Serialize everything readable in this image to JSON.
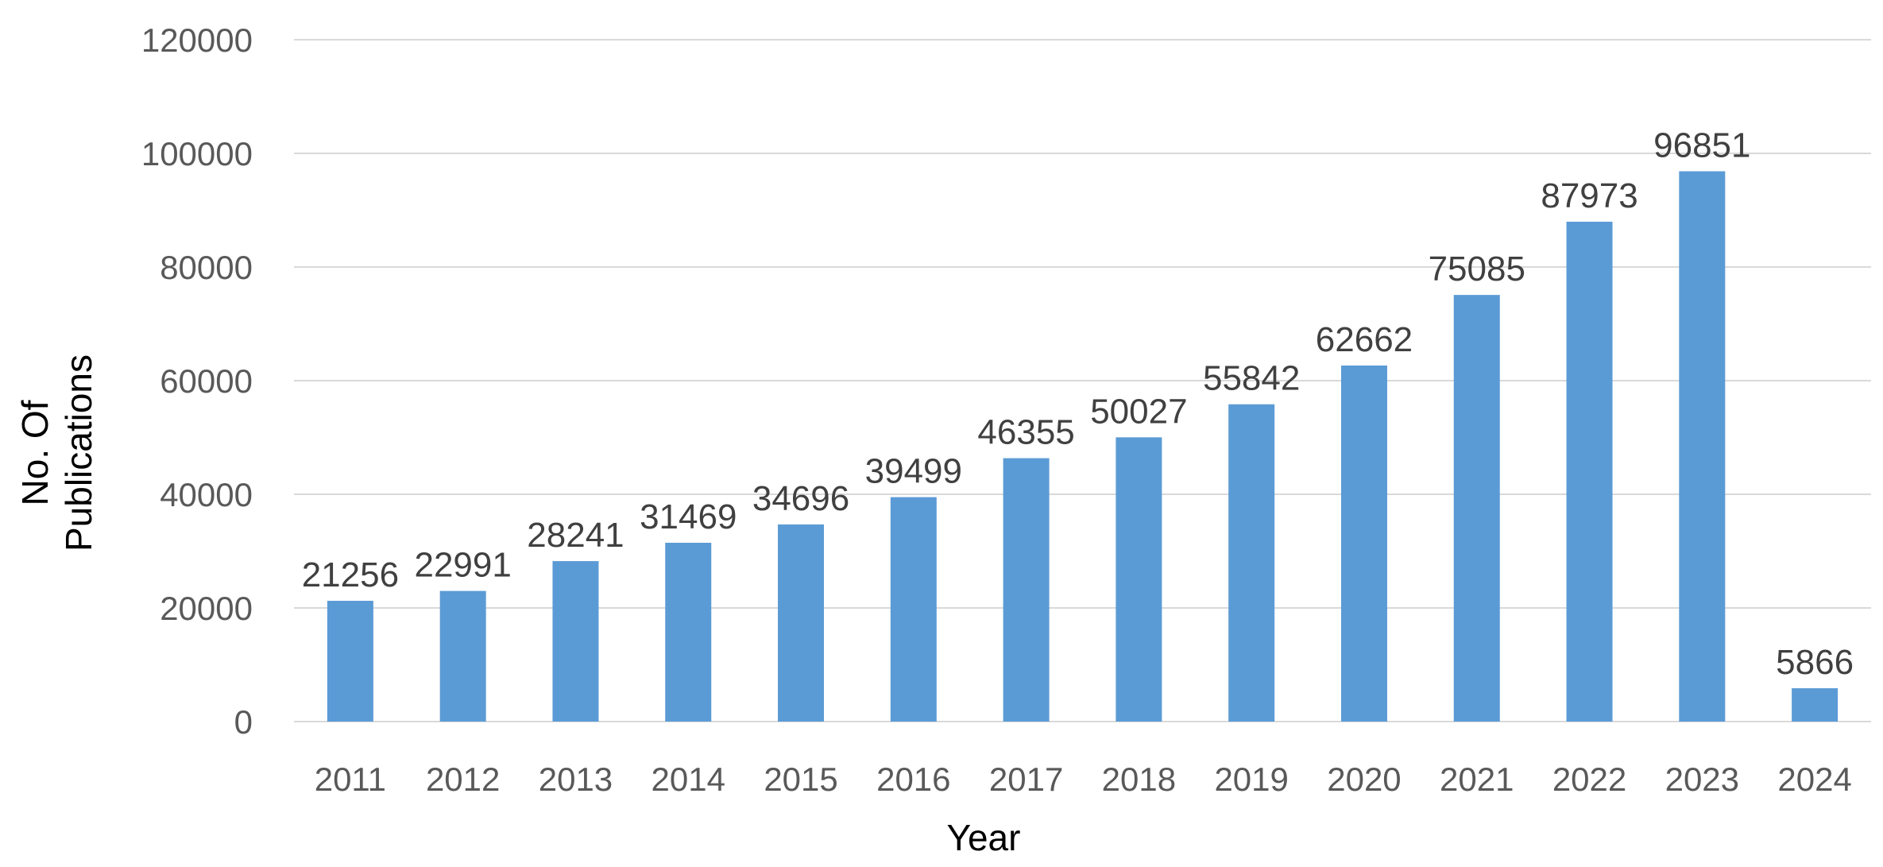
{
  "chart_data": {
    "type": "bar",
    "categories": [
      "2011",
      "2012",
      "2013",
      "2014",
      "2015",
      "2016",
      "2017",
      "2018",
      "2019",
      "2020",
      "2021",
      "2022",
      "2023",
      "2024"
    ],
    "values": [
      21256,
      22991,
      28241,
      31469,
      34696,
      39499,
      46355,
      50027,
      55842,
      62662,
      75085,
      87973,
      96851,
      5866
    ],
    "data_labels": [
      "21256",
      "22991",
      "28241",
      "31469",
      "34696",
      "39499",
      "46355",
      "50027",
      "55842",
      "62662",
      "75085",
      "87973",
      "96851",
      "5866"
    ],
    "y_ticks": [
      "0",
      "20000",
      "40000",
      "60000",
      "80000",
      "100000",
      "120000"
    ],
    "title": "",
    "xlabel": "Year",
    "ylabel_line1": "No. Of",
    "ylabel_line2": "Publications",
    "ylim": [
      0,
      120000
    ],
    "grid": true,
    "colors": {
      "bar": "#5b9bd5",
      "grid": "#d9d9d9"
    }
  }
}
